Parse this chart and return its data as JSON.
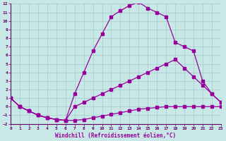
{
  "background_color": "#c8e8e8",
  "grid_color": "#a8d0d0",
  "line_color": "#990099",
  "xlabel": "Windchill (Refroidissement éolien,°C)",
  "xlim": [
    0,
    23
  ],
  "ylim": [
    -2,
    12
  ],
  "xticks": [
    0,
    1,
    2,
    3,
    4,
    5,
    6,
    7,
    8,
    9,
    10,
    11,
    12,
    13,
    14,
    15,
    16,
    17,
    18,
    19,
    20,
    21,
    22,
    23
  ],
  "yticks": [
    -2,
    -1,
    0,
    1,
    2,
    3,
    4,
    5,
    6,
    7,
    8,
    9,
    10,
    11,
    12
  ],
  "line1_x": [
    0,
    1,
    2,
    3,
    4,
    5,
    6,
    7,
    8,
    9,
    10,
    11,
    12,
    13,
    14,
    15,
    16,
    17,
    18,
    19,
    20,
    21,
    22,
    23
  ],
  "line1_y": [
    1.0,
    0.0,
    -0.5,
    -1.0,
    -1.3,
    -1.5,
    -1.6,
    -1.6,
    -1.5,
    -1.3,
    -1.1,
    -0.9,
    -0.7,
    -0.5,
    -0.3,
    -0.2,
    -0.1,
    0.0,
    0.0,
    0.0,
    0.0,
    0.0,
    0.0,
    0.0
  ],
  "line2_x": [
    0,
    1,
    2,
    3,
    4,
    5,
    6,
    7,
    8,
    9,
    10,
    11,
    12,
    13,
    14,
    15,
    16,
    17,
    18,
    19,
    20,
    21,
    22,
    23
  ],
  "line2_y": [
    1.0,
    0.0,
    -0.5,
    -1.0,
    -1.3,
    -1.5,
    -1.6,
    0.0,
    0.5,
    1.0,
    1.5,
    2.0,
    2.5,
    3.0,
    3.5,
    4.0,
    4.5,
    5.0,
    5.5,
    4.5,
    3.5,
    2.5,
    1.5,
    0.5
  ],
  "line3_x": [
    0,
    1,
    2,
    3,
    4,
    5,
    6,
    7,
    8,
    9,
    10,
    11,
    12,
    13,
    14,
    15,
    16,
    17,
    18,
    19,
    20,
    21,
    22,
    23
  ],
  "line3_y": [
    1.0,
    0.0,
    -0.5,
    -1.0,
    -1.3,
    -1.5,
    -1.6,
    1.5,
    4.0,
    6.5,
    8.5,
    10.5,
    11.2,
    11.8,
    12.2,
    11.5,
    11.0,
    10.5,
    7.5,
    7.0,
    6.5,
    3.0,
    1.5,
    0.5
  ]
}
